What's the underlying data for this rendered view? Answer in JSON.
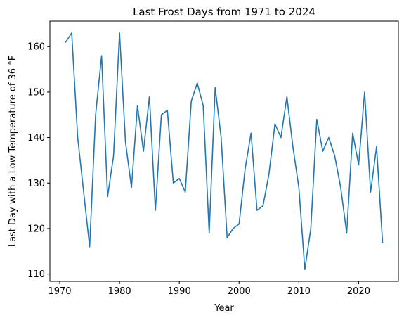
{
  "chart_data": {
    "type": "line",
    "title": "Last Frost Days from 1971 to 2024",
    "xlabel": "Year",
    "ylabel": "Last Day with a Low Temperature of 36 °F",
    "xlim": [
      1968.35,
      2026.65
    ],
    "ylim": [
      108.4,
      165.6
    ],
    "xticks": [
      1970,
      1980,
      1990,
      2000,
      2010,
      2020
    ],
    "yticks": [
      110,
      120,
      130,
      140,
      150,
      160
    ],
    "grid": false,
    "line_color": "#1f77b4",
    "series": [
      {
        "x": [
          1971,
          1972,
          1973,
          1974,
          1975,
          1976,
          1977,
          1978,
          1979,
          1980,
          1981,
          1982,
          1983,
          1984,
          1985,
          1986,
          1987,
          1988,
          1989,
          1990,
          1991,
          1992,
          1993,
          1994,
          1995,
          1996,
          1997,
          1998,
          1999,
          2000,
          2001,
          2002,
          2003,
          2004,
          2005,
          2006,
          2007,
          2008,
          2009,
          2010,
          2011,
          2012,
          2013,
          2014,
          2015,
          2016,
          2017,
          2018,
          2019,
          2020,
          2021,
          2022,
          2023,
          2024
        ],
        "values": [
          161,
          163,
          140,
          128,
          116,
          145,
          158,
          127,
          136,
          163,
          139,
          129,
          147,
          137,
          149,
          124,
          145,
          146,
          130,
          131,
          128,
          148,
          152,
          147,
          119,
          151,
          140,
          118,
          120,
          121,
          133,
          141,
          124,
          125,
          132,
          143,
          140,
          149,
          138,
          129,
          111,
          120,
          144,
          137,
          140,
          136,
          129,
          119,
          141,
          134,
          150,
          128,
          138,
          117
        ]
      }
    ]
  }
}
